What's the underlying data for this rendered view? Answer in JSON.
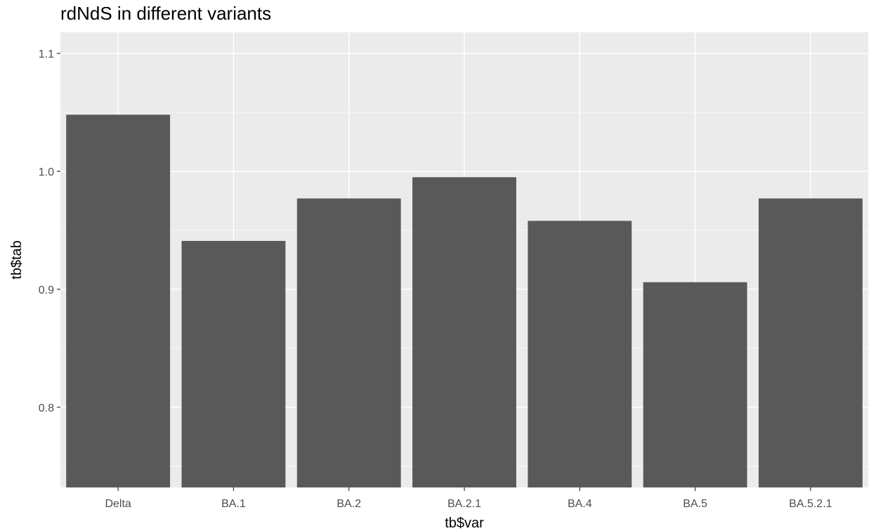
{
  "chart_data": {
    "type": "bar",
    "title": "rdNdS in different variants",
    "xlabel": "tb$var",
    "ylabel": "tb$tab",
    "categories": [
      "Delta",
      "BA.1",
      "BA.2",
      "BA.2.1",
      "BA.4",
      "BA.5",
      "BA.5.2.1"
    ],
    "values": [
      1.048,
      0.941,
      0.977,
      0.995,
      0.958,
      0.906,
      0.977
    ],
    "ylim": [
      0.732,
      1.1
    ],
    "yticks": [
      0.8,
      0.9,
      1.0,
      1.1
    ],
    "ytick_labels": [
      "0.8",
      "0.9",
      "1.0",
      "1.1"
    ],
    "grid": true,
    "panel_background": "#ebebeb",
    "bar_color": "#595959",
    "grid_color": "#ffffff"
  }
}
